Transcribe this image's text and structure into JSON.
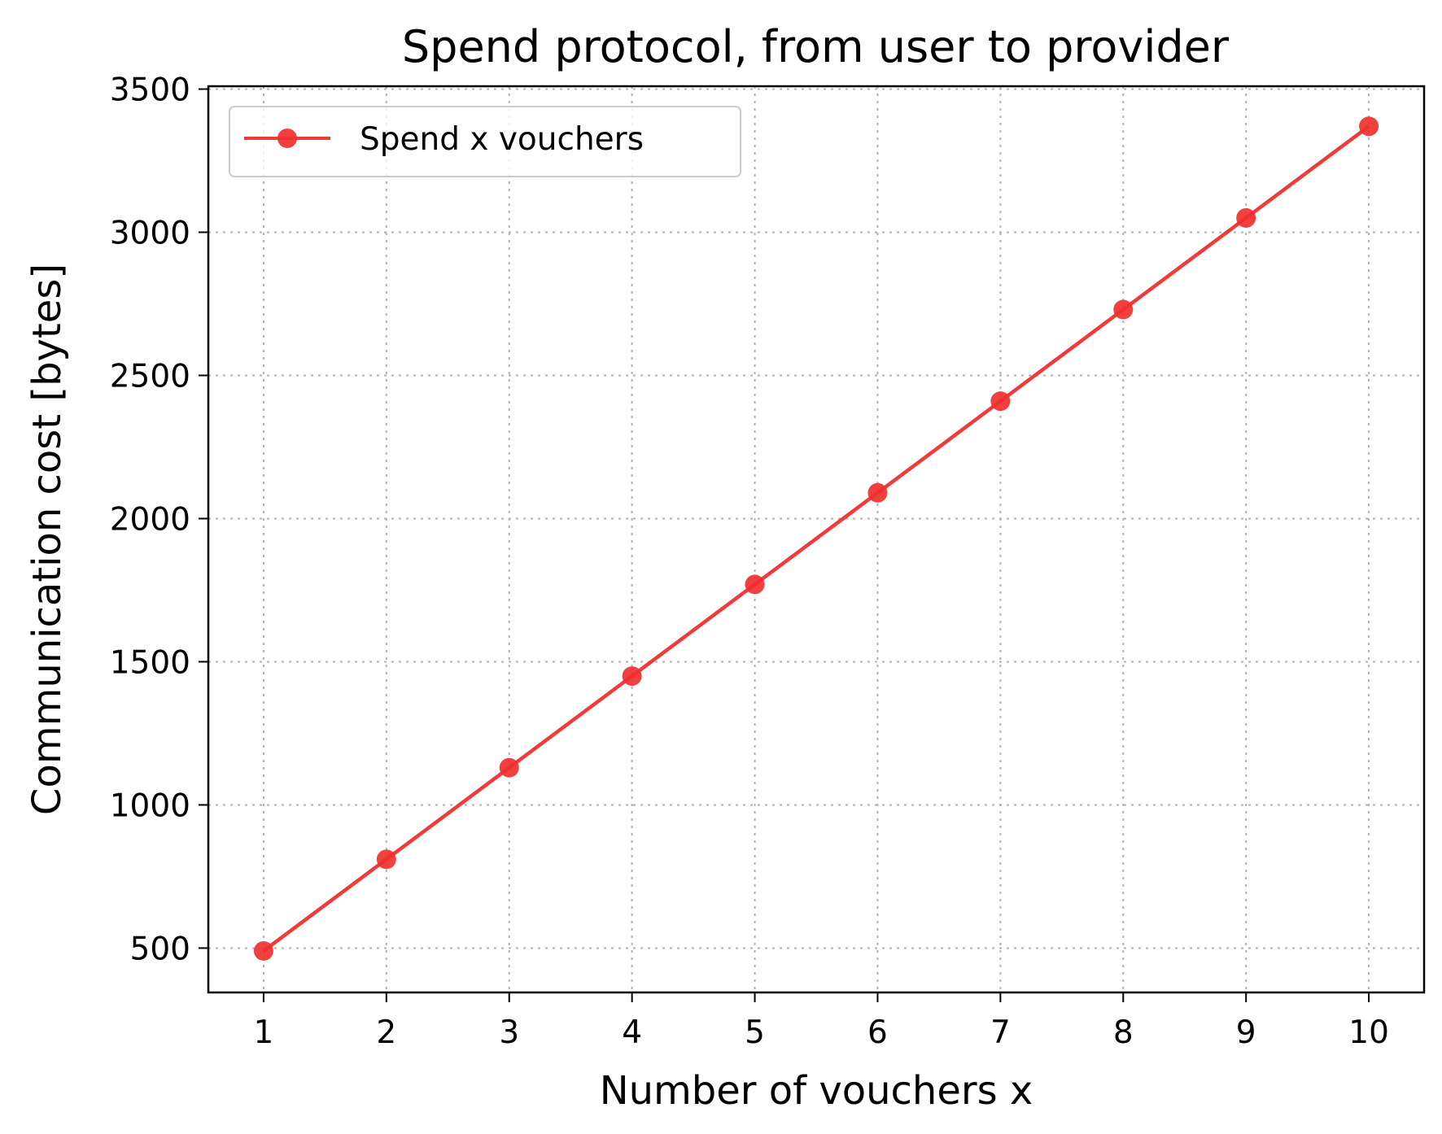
{
  "chart_data": {
    "type": "line",
    "title": "Spend protocol, from user to provider",
    "xlabel": "Number of vouchers x",
    "ylabel": "Communication cost [bytes]",
    "x": [
      1,
      2,
      3,
      4,
      5,
      6,
      7,
      8,
      9,
      10
    ],
    "xticks": [
      1,
      2,
      3,
      4,
      5,
      6,
      7,
      8,
      9,
      10
    ],
    "yticks": [
      500,
      1000,
      1500,
      2000,
      2500,
      3000,
      3500
    ],
    "xlim": [
      0.55,
      10.45
    ],
    "ylim": [
      345,
      3510
    ],
    "grid": true,
    "legend_position": "top-left",
    "series": [
      {
        "name": "Spend x vouchers",
        "color": "#f03030",
        "marker": "circle",
        "values": [
          490,
          810,
          1130,
          1450,
          1770,
          2090,
          2410,
          2730,
          3050,
          3370
        ]
      }
    ]
  }
}
